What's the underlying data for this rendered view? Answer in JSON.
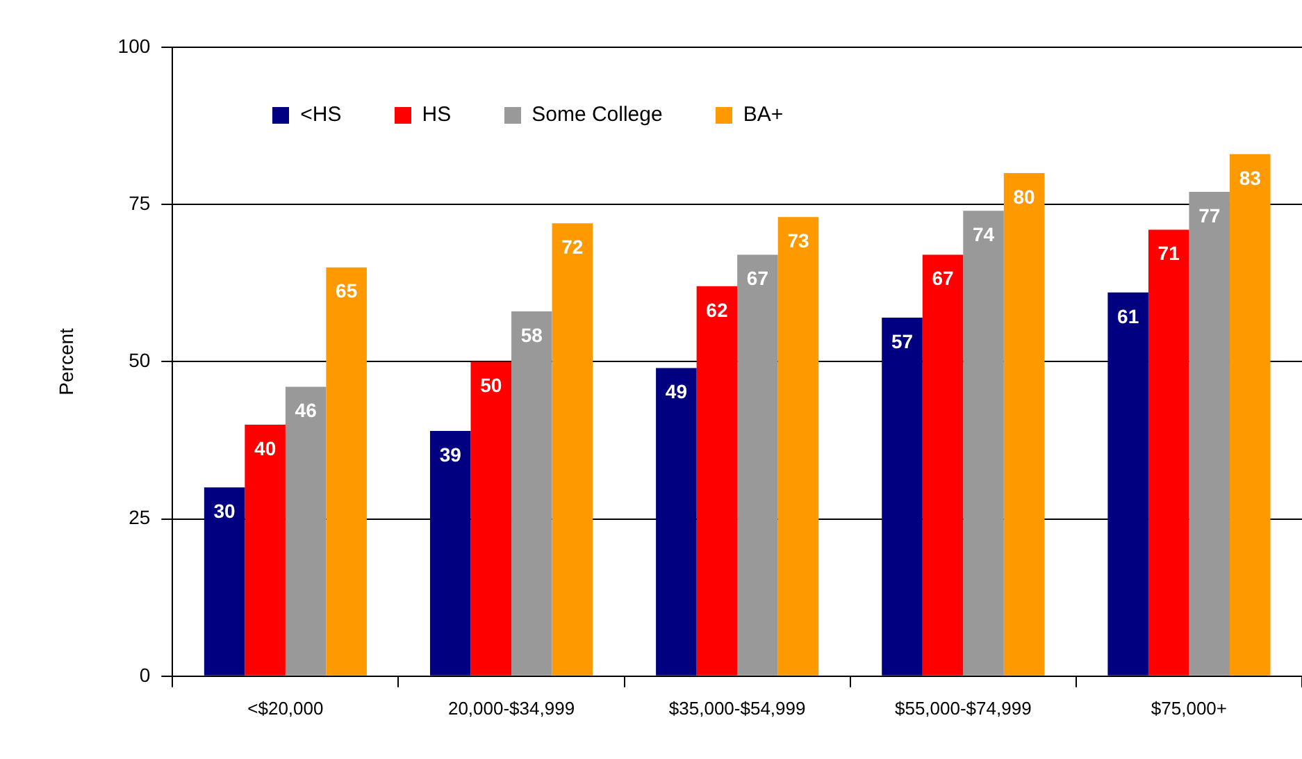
{
  "chart_data": {
    "type": "bar",
    "ylabel": "Percent",
    "categories": [
      "<$20,000",
      "20,000-$34,999",
      "$35,000-$54,999",
      "$55,000-$74,999",
      "$75,000+"
    ],
    "series": [
      {
        "name": "<HS",
        "color": "#000080",
        "values": [
          30,
          39,
          49,
          57,
          61
        ]
      },
      {
        "name": "HS",
        "color": "#ff0000",
        "values": [
          40,
          50,
          62,
          67,
          71
        ]
      },
      {
        "name": "Some College",
        "color": "#999999",
        "values": [
          46,
          58,
          67,
          74,
          77
        ]
      },
      {
        "name": "BA+",
        "color": "#ff9900",
        "values": [
          65,
          72,
          73,
          80,
          83
        ]
      }
    ],
    "ylim": [
      0,
      100
    ],
    "yticks": [
      0,
      25,
      50,
      75,
      100
    ],
    "grid": "y",
    "legend": "top left",
    "data_labels": true
  }
}
